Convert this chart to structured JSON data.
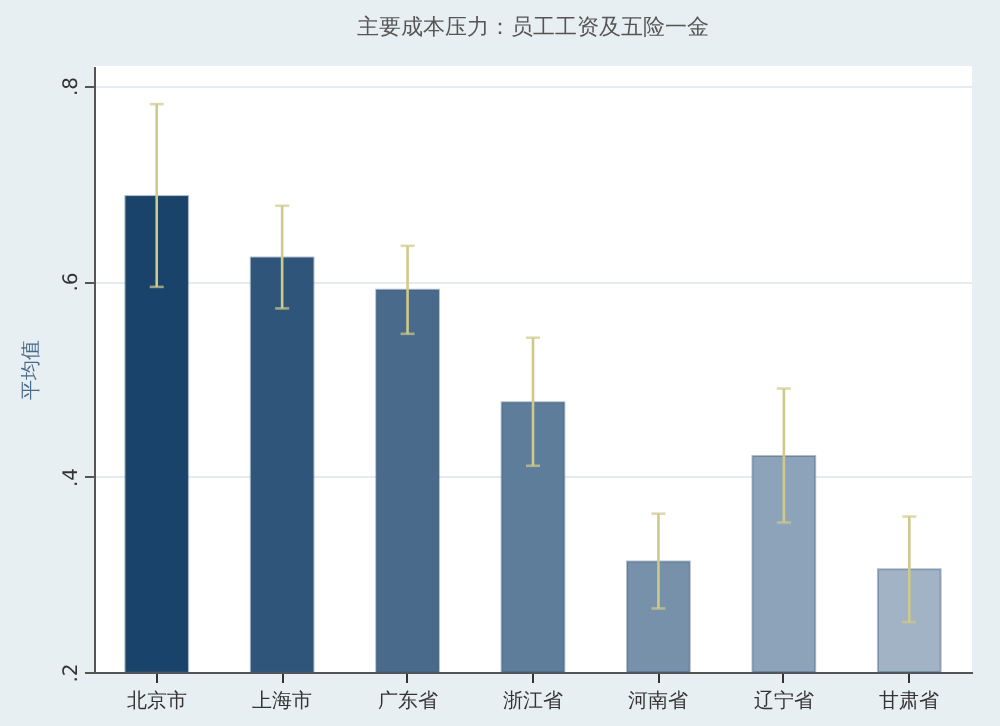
{
  "chart_data": {
    "type": "bar",
    "title": "主要成本压力：员工工资及五险一金",
    "ylabel": "平均值",
    "categories": [
      "北京市",
      "上海市",
      "广东省",
      "浙江省",
      "河南省",
      "辽宁省",
      "甘肃省"
    ],
    "values": [
      0.687,
      0.624,
      0.591,
      0.476,
      0.313,
      0.421,
      0.305
    ],
    "colors": [
      "#1a436b",
      "#30557a",
      "#4a6a8c",
      "#5e7d9a",
      "#7891ab",
      "#8ca3ba",
      "#a2b3c5"
    ],
    "errors": [
      [
        0.594,
        0.781
      ],
      [
        0.572,
        0.677
      ],
      [
        0.546,
        0.636
      ],
      [
        0.411,
        0.542
      ],
      [
        0.265,
        0.362
      ],
      [
        0.353,
        0.49
      ],
      [
        0.251,
        0.359
      ]
    ],
    "ylim": [
      0.2,
      0.82
    ],
    "yticks": [
      {
        "value": 0.2,
        "label": ".2"
      },
      {
        "value": 0.4,
        "label": ".4"
      },
      {
        "value": 0.6,
        "label": ".6"
      },
      {
        "value": 0.8,
        "label": ".8"
      }
    ],
    "grid": "y",
    "legend": false
  }
}
